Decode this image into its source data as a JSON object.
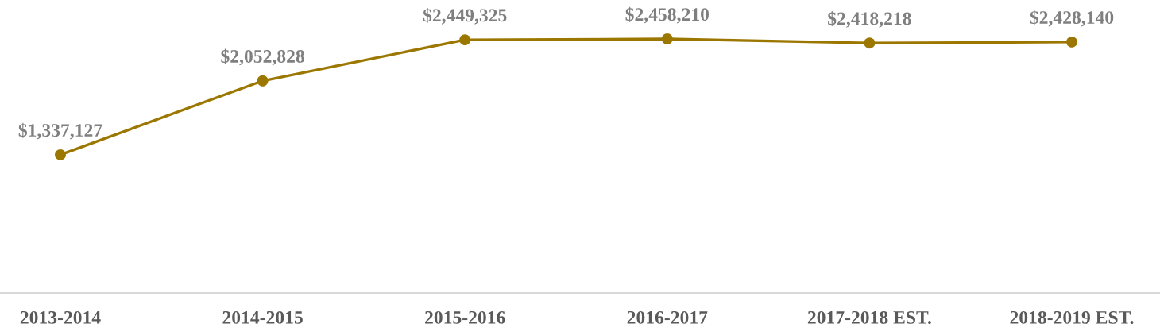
{
  "chart_data": {
    "type": "line",
    "categories": [
      "2013-2014",
      "2014-2015",
      "2015-2016",
      "2016-2017",
      "2017-2018 EST.",
      "2018-2019 EST."
    ],
    "series": [
      {
        "color": "#9c7700",
        "values": [
          1337127,
          2052828,
          2449325,
          2458210,
          2418218,
          2428140
        ],
        "value_labels": [
          "$1,337,127",
          "$2,052,828",
          "$2,449,325",
          "$2,458,210",
          "$2,418,218",
          "$2,428,140"
        ]
      }
    ],
    "marker": "circle",
    "line_style": "solid",
    "grid": false,
    "tick_labels": "x"
  }
}
